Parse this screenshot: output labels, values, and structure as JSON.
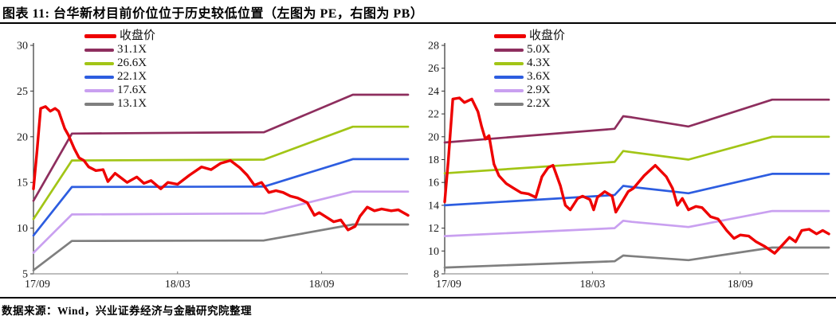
{
  "header": {
    "title": "图表 11:  台华新材目前价位位于历史较低位置（左图为 PE，右图为 PB）"
  },
  "footer": {
    "source": "数据来源：Wind，兴业证券经济与金融研究院整理"
  },
  "colors": {
    "close_price": "#ee0000",
    "band1": "#8e2e5e",
    "band2": "#a2c516",
    "band3": "#2d5de0",
    "band4": "#c9a0f0",
    "band5": "#7f7f7f",
    "axis": "#333333",
    "x_axis": "#a9a9a9"
  },
  "chart_data": [
    {
      "type": "line",
      "name": "PE-band-chart",
      "ylim": [
        5,
        30
      ],
      "ytick_step": 5,
      "xlim": [
        0,
        15.6
      ],
      "xticks": [
        {
          "x": 0,
          "label": "17/09"
        },
        {
          "x": 6,
          "label": "18/03"
        },
        {
          "x": 12,
          "label": "18/09"
        }
      ],
      "grid": false,
      "legend_position": "top-left-inside",
      "series": [
        {
          "name": "收盘价",
          "color": "#ee0000",
          "width": 3.4,
          "points": [
            [
              0,
              14.3
            ],
            [
              0.15,
              18.5
            ],
            [
              0.3,
              23.1
            ],
            [
              0.5,
              23.3
            ],
            [
              0.7,
              22.8
            ],
            [
              0.9,
              23.1
            ],
            [
              1.05,
              22.8
            ],
            [
              1.3,
              20.9
            ],
            [
              1.45,
              20.2
            ],
            [
              1.7,
              18.7
            ],
            [
              1.9,
              17.7
            ],
            [
              2.1,
              17.4
            ],
            [
              2.3,
              16.7
            ],
            [
              2.6,
              16.3
            ],
            [
              2.9,
              16.4
            ],
            [
              3.1,
              15.1
            ],
            [
              3.4,
              16.0
            ],
            [
              3.7,
              15.4
            ],
            [
              3.9,
              15.0
            ],
            [
              4.3,
              15.6
            ],
            [
              4.6,
              14.9
            ],
            [
              4.9,
              15.2
            ],
            [
              5.3,
              14.3
            ],
            [
              5.6,
              15.0
            ],
            [
              6.0,
              14.8
            ],
            [
              6.5,
              15.8
            ],
            [
              7.0,
              16.7
            ],
            [
              7.4,
              16.4
            ],
            [
              7.8,
              17.1
            ],
            [
              8.2,
              17.4
            ],
            [
              8.6,
              16.6
            ],
            [
              8.9,
              15.8
            ],
            [
              9.2,
              14.7
            ],
            [
              9.5,
              15.0
            ],
            [
              9.8,
              13.9
            ],
            [
              10.1,
              14.1
            ],
            [
              10.4,
              13.9
            ],
            [
              10.7,
              13.5
            ],
            [
              11.0,
              13.3
            ],
            [
              11.4,
              12.8
            ],
            [
              11.7,
              11.4
            ],
            [
              11.9,
              11.7
            ],
            [
              12.2,
              11.2
            ],
            [
              12.5,
              10.7
            ],
            [
              12.8,
              10.9
            ],
            [
              13.1,
              9.8
            ],
            [
              13.4,
              10.2
            ],
            [
              13.6,
              11.3
            ],
            [
              13.9,
              12.3
            ],
            [
              14.2,
              11.9
            ],
            [
              14.5,
              12.1
            ],
            [
              14.9,
              11.9
            ],
            [
              15.2,
              12.0
            ],
            [
              15.6,
              11.4
            ]
          ]
        },
        {
          "name": "31.1X",
          "color": "#8e2e5e",
          "width": 2.7,
          "points": [
            [
              0,
              13.0
            ],
            [
              1.6,
              20.35
            ],
            [
              9.6,
              20.5
            ],
            [
              13.3,
              24.6
            ],
            [
              15.6,
              24.6
            ]
          ]
        },
        {
          "name": "26.6X",
          "color": "#a2c516",
          "width": 2.7,
          "points": [
            [
              0,
              11.0
            ],
            [
              1.6,
              17.4
            ],
            [
              9.6,
              17.5
            ],
            [
              13.3,
              21.1
            ],
            [
              15.6,
              21.1
            ]
          ]
        },
        {
          "name": "22.1X",
          "color": "#2d5de0",
          "width": 2.7,
          "points": [
            [
              0,
              9.2
            ],
            [
              1.6,
              14.5
            ],
            [
              9.6,
              14.55
            ],
            [
              13.3,
              17.55
            ],
            [
              15.6,
              17.55
            ]
          ]
        },
        {
          "name": "17.6X",
          "color": "#c9a0f0",
          "width": 2.7,
          "points": [
            [
              0,
              7.3
            ],
            [
              1.6,
              11.5
            ],
            [
              9.6,
              11.6
            ],
            [
              13.3,
              14.0
            ],
            [
              15.6,
              14.0
            ]
          ]
        },
        {
          "name": "13.1X",
          "color": "#7f7f7f",
          "width": 2.7,
          "points": [
            [
              0,
              5.4
            ],
            [
              1.6,
              8.6
            ],
            [
              9.6,
              8.65
            ],
            [
              13.3,
              10.4
            ],
            [
              15.6,
              10.4
            ]
          ]
        }
      ]
    },
    {
      "type": "line",
      "name": "PB-band-chart",
      "ylim": [
        8,
        28
      ],
      "ytick_step": 2,
      "xlim": [
        0,
        15.6
      ],
      "xticks": [
        {
          "x": 0,
          "label": "17/09"
        },
        {
          "x": 6,
          "label": "18/03"
        },
        {
          "x": 12,
          "label": "18/09"
        }
      ],
      "grid": false,
      "legend_position": "top-left-inside",
      "series": [
        {
          "name": "收盘价",
          "color": "#ee0000",
          "width": 3.4,
          "points": [
            [
              0,
              14.3
            ],
            [
              0.15,
              18.0
            ],
            [
              0.33,
              23.3
            ],
            [
              0.6,
              23.4
            ],
            [
              0.8,
              23.0
            ],
            [
              1.1,
              23.3
            ],
            [
              1.35,
              22.2
            ],
            [
              1.5,
              20.9
            ],
            [
              1.65,
              19.8
            ],
            [
              1.8,
              20.1
            ],
            [
              2.0,
              17.6
            ],
            [
              2.2,
              16.6
            ],
            [
              2.5,
              15.9
            ],
            [
              2.8,
              15.5
            ],
            [
              3.1,
              15.1
            ],
            [
              3.4,
              15.0
            ],
            [
              3.7,
              14.7
            ],
            [
              3.95,
              16.5
            ],
            [
              4.2,
              17.3
            ],
            [
              4.4,
              17.5
            ],
            [
              4.7,
              15.7
            ],
            [
              4.9,
              14.0
            ],
            [
              5.1,
              13.6
            ],
            [
              5.4,
              14.6
            ],
            [
              5.6,
              14.8
            ],
            [
              5.9,
              14.5
            ],
            [
              6.05,
              13.6
            ],
            [
              6.2,
              14.7
            ],
            [
              6.5,
              15.2
            ],
            [
              6.8,
              14.8
            ],
            [
              6.95,
              13.4
            ],
            [
              7.2,
              14.3
            ],
            [
              7.45,
              15.2
            ],
            [
              7.67,
              15.5
            ],
            [
              8.1,
              16.6
            ],
            [
              8.55,
              17.5
            ],
            [
              9.0,
              16.5
            ],
            [
              9.25,
              15.5
            ],
            [
              9.45,
              14.0
            ],
            [
              9.65,
              14.6
            ],
            [
              9.9,
              13.6
            ],
            [
              10.2,
              13.9
            ],
            [
              10.45,
              13.8
            ],
            [
              10.8,
              13.0
            ],
            [
              11.1,
              12.8
            ],
            [
              11.45,
              11.8
            ],
            [
              11.75,
              11.1
            ],
            [
              12.0,
              11.4
            ],
            [
              12.35,
              11.3
            ],
            [
              12.65,
              10.8
            ],
            [
              13.0,
              10.4
            ],
            [
              13.4,
              9.8
            ],
            [
              13.75,
              10.6
            ],
            [
              14.0,
              11.2
            ],
            [
              14.25,
              10.8
            ],
            [
              14.5,
              11.8
            ],
            [
              14.8,
              11.9
            ],
            [
              15.1,
              11.5
            ],
            [
              15.35,
              11.8
            ],
            [
              15.6,
              11.5
            ]
          ]
        },
        {
          "name": "5.0X",
          "color": "#8e2e5e",
          "width": 2.7,
          "points": [
            [
              0,
              19.5
            ],
            [
              6.9,
              20.7
            ],
            [
              7.25,
              21.8
            ],
            [
              7.6,
              21.7
            ],
            [
              9.9,
              20.9
            ],
            [
              13.3,
              23.25
            ],
            [
              15.6,
              23.25
            ]
          ]
        },
        {
          "name": "4.3X",
          "color": "#a2c516",
          "width": 2.7,
          "points": [
            [
              0,
              16.8
            ],
            [
              6.9,
              17.8
            ],
            [
              7.25,
              18.75
            ],
            [
              7.6,
              18.65
            ],
            [
              9.9,
              18.0
            ],
            [
              13.3,
              20.0
            ],
            [
              15.6,
              20.0
            ]
          ]
        },
        {
          "name": "3.6X",
          "color": "#2d5de0",
          "width": 2.7,
          "points": [
            [
              0,
              14.0
            ],
            [
              6.9,
              14.9
            ],
            [
              7.25,
              15.7
            ],
            [
              7.6,
              15.6
            ],
            [
              9.9,
              15.05
            ],
            [
              13.3,
              16.75
            ],
            [
              15.6,
              16.75
            ]
          ]
        },
        {
          "name": "2.9X",
          "color": "#c9a0f0",
          "width": 2.7,
          "points": [
            [
              0,
              11.3
            ],
            [
              6.9,
              12.0
            ],
            [
              7.25,
              12.65
            ],
            [
              7.6,
              12.55
            ],
            [
              9.9,
              12.1
            ],
            [
              13.3,
              13.5
            ],
            [
              15.6,
              13.5
            ]
          ]
        },
        {
          "name": "2.2X",
          "color": "#7f7f7f",
          "width": 2.7,
          "points": [
            [
              0,
              8.55
            ],
            [
              6.9,
              9.1
            ],
            [
              7.25,
              9.6
            ],
            [
              7.6,
              9.55
            ],
            [
              9.9,
              9.2
            ],
            [
              13.3,
              10.3
            ],
            [
              15.6,
              10.3
            ]
          ]
        }
      ]
    }
  ]
}
